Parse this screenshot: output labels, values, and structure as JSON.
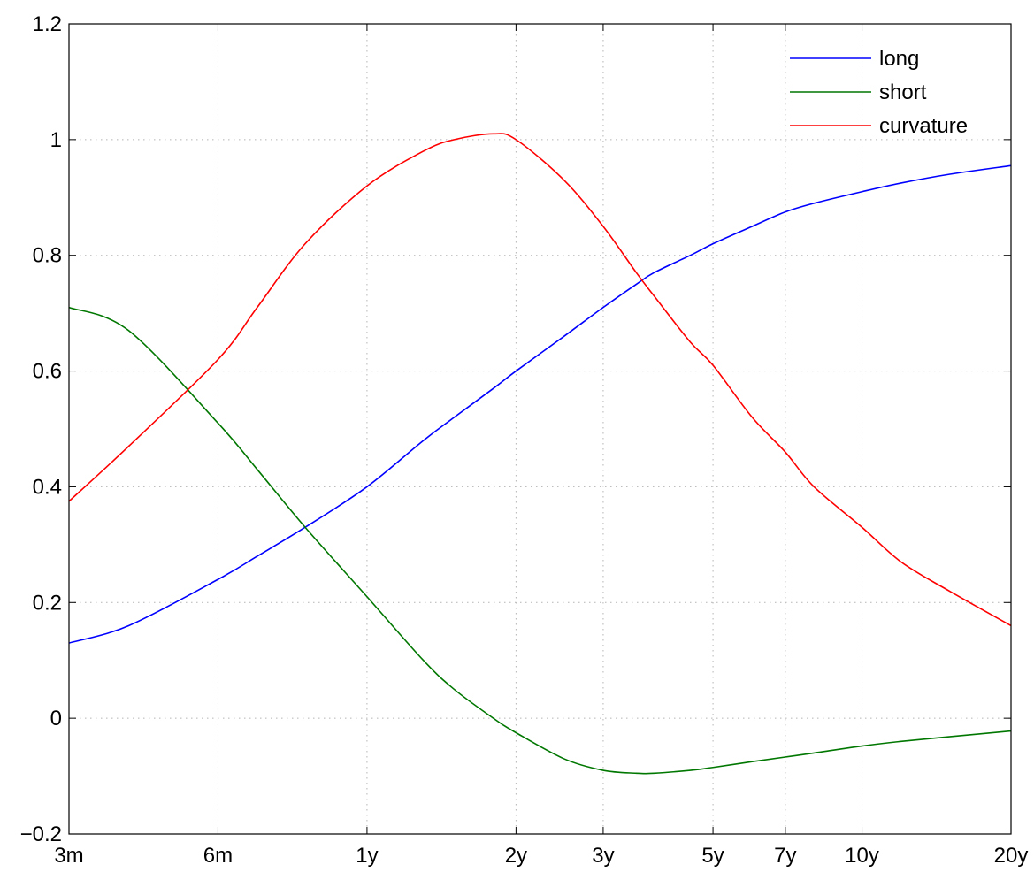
{
  "chart_data": {
    "type": "line",
    "x_scale": "log",
    "x_unit": "years",
    "x_ticks": [
      {
        "label": "3m",
        "value": 0.25
      },
      {
        "label": "6m",
        "value": 0.5
      },
      {
        "label": "1y",
        "value": 1
      },
      {
        "label": "2y",
        "value": 2
      },
      {
        "label": "3y",
        "value": 3
      },
      {
        "label": "5y",
        "value": 5
      },
      {
        "label": "7y",
        "value": 7
      },
      {
        "label": "10y",
        "value": 10
      },
      {
        "label": "20y",
        "value": 20
      }
    ],
    "xlim": [
      0.25,
      20
    ],
    "ylim": [
      -0.2,
      1.2
    ],
    "y_ticks": [
      {
        "label": "−0.2",
        "value": -0.2
      },
      {
        "label": "0",
        "value": 0
      },
      {
        "label": "0.2",
        "value": 0.2
      },
      {
        "label": "0.4",
        "value": 0.4
      },
      {
        "label": "0.6",
        "value": 0.6
      },
      {
        "label": "0.8",
        "value": 0.8
      },
      {
        "label": "1",
        "value": 1
      },
      {
        "label": "1.2",
        "value": 1.2
      }
    ],
    "grid": true,
    "legend": "top-right",
    "x": [
      0.25,
      0.33,
      0.5,
      0.6,
      0.75,
      1,
      1.3,
      1.5,
      1.8,
      2,
      2.5,
      3,
      3.5,
      3.8,
      4.5,
      5,
      6,
      7,
      8,
      10,
      12,
      15,
      20
    ],
    "series": [
      {
        "name": "long",
        "color": "#0000ff",
        "values": [
          0.13,
          0.16,
          0.24,
          0.28,
          0.33,
          0.4,
          0.48,
          0.52,
          0.57,
          0.6,
          0.66,
          0.71,
          0.75,
          0.77,
          0.8,
          0.82,
          0.85,
          0.875,
          0.89,
          0.91,
          0.925,
          0.94,
          0.955
        ]
      },
      {
        "name": "short",
        "color": "#007700",
        "values": [
          0.71,
          0.67,
          0.51,
          0.43,
          0.33,
          0.21,
          0.1,
          0.05,
          0.0,
          -0.025,
          -0.07,
          -0.09,
          -0.095,
          -0.095,
          -0.09,
          -0.085,
          -0.075,
          -0.067,
          -0.06,
          -0.048,
          -0.04,
          -0.032,
          -0.022
        ]
      },
      {
        "name": "curvature",
        "color": "#ff0000",
        "values": [
          0.375,
          0.47,
          0.62,
          0.71,
          0.82,
          0.92,
          0.98,
          1.0,
          1.01,
          1.0,
          0.93,
          0.85,
          0.77,
          0.73,
          0.65,
          0.61,
          0.52,
          0.46,
          0.4,
          0.33,
          0.27,
          0.22,
          0.16
        ]
      }
    ]
  }
}
